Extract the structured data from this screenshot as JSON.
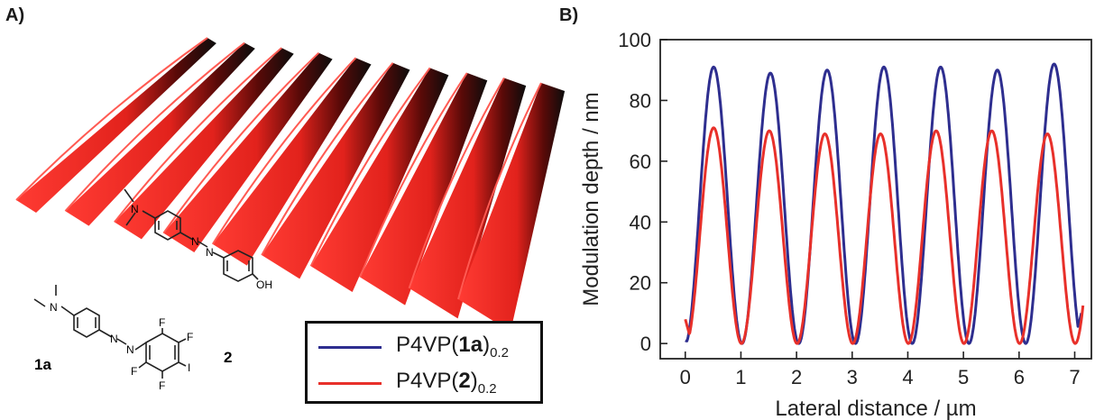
{
  "panels": {
    "a_label": "A)",
    "b_label": "B)"
  },
  "molecules": {
    "compound_1a": "1a",
    "compound_2": "2",
    "atoms": {
      "N": "N",
      "F": "F",
      "I": "I",
      "OH": "OH"
    }
  },
  "legend": {
    "items": [
      {
        "prefix": "P4VP(",
        "bold": "1a",
        "suffix": ")",
        "sub": "0.2",
        "color": "#2e2e8f"
      },
      {
        "prefix": "P4VP(",
        "bold": "2",
        "suffix": ")",
        "sub": "0.2",
        "color": "#e8302a"
      }
    ]
  },
  "surface": {
    "ridge_color": "#ee2a24",
    "shadow_color": "#111111",
    "ridges": 10
  },
  "chart_data": {
    "type": "line",
    "xlabel": "Lateral distance / µm",
    "ylabel": "Modulation depth / nm",
    "xlim": [
      -0.45,
      7.3
    ],
    "ylim": [
      -5,
      100
    ],
    "xticks": [
      0,
      1,
      2,
      3,
      4,
      5,
      6,
      7
    ],
    "yticks": [
      0,
      20,
      40,
      60,
      80,
      100
    ],
    "grid": false,
    "series": [
      {
        "name": "P4VP(1a)0.2",
        "color": "#2e2e8f",
        "period": 1.02,
        "phase_peak_x": 0.51,
        "min": 0,
        "peaks": [
          91,
          89,
          90,
          91,
          91,
          90,
          92
        ],
        "x_range": [
          0.0,
          7.12
        ],
        "start_y": 1,
        "end_y": 10
      },
      {
        "name": "P4VP(2)0.2",
        "color": "#e8302a",
        "period": 1.0,
        "phase_peak_x": 0.51,
        "min": 0,
        "peaks": [
          71,
          70,
          69,
          69,
          70,
          70,
          69
        ],
        "x_range": [
          0.0,
          7.15
        ],
        "start_y": 8,
        "end_y": 2
      }
    ]
  }
}
